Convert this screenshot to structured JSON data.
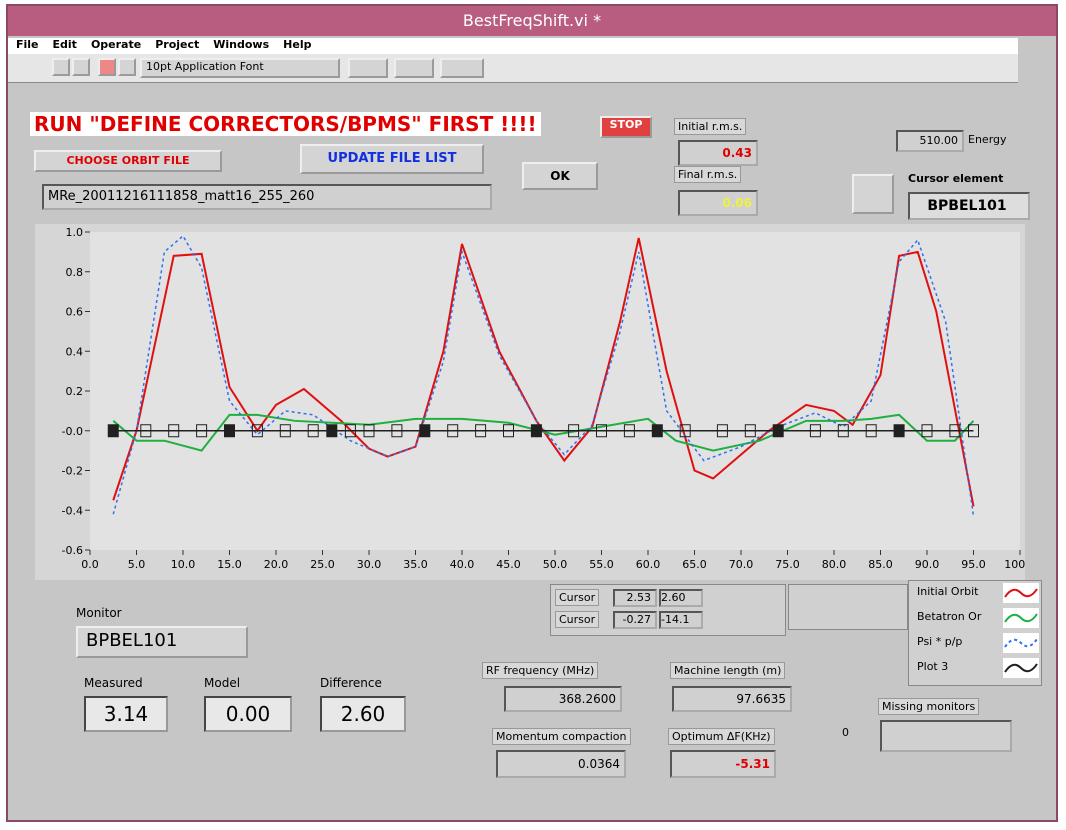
{
  "window": {
    "title": "BestFreqShift.vi *"
  },
  "menu": [
    "File",
    "Edit",
    "Operate",
    "Project",
    "Windows",
    "Help"
  ],
  "toolbar": {
    "font": "10pt Application Font"
  },
  "panel": {
    "warning": "RUN \"DEFINE CORRECTORS/BPMS\" FIRST !!!!",
    "stop": "STOP",
    "choose_file": "CHOOSE ORBIT FILE",
    "update_list": "UPDATE FILE LIST",
    "ok": "OK",
    "file": "MRe_20011216111858_matt16_255_260",
    "initial_rms": {
      "label": "Initial r.m.s.",
      "value": "0.43"
    },
    "final_rms": {
      "label": "Final r.m.s.",
      "value": "0.06"
    },
    "energy": {
      "value": "510.00",
      "label": "Energy"
    },
    "cursor_element": {
      "label": "Cursor element",
      "value": "BPBEL101"
    },
    "cursors": [
      {
        "label": "Cursor",
        "x": "2.53",
        "y": "2.60"
      },
      {
        "label": "Cursor",
        "x": "-0.27",
        "y": "-14.1"
      }
    ],
    "monitor": {
      "label": "Monitor",
      "value": "BPBEL101"
    },
    "measured": {
      "label": "Measured",
      "value": "3.14"
    },
    "model": {
      "label": "Model",
      "value": "0.00"
    },
    "difference": {
      "label": "Difference",
      "value": "2.60"
    },
    "rf_frequency": {
      "label": "RF frequency (MHz)",
      "value": "368.2600"
    },
    "machine_length": {
      "label": "Machine length (m)",
      "value": "97.6635"
    },
    "momentum_compaction": {
      "label": "Momentum compaction",
      "value": "0.0364"
    },
    "optimum_df": {
      "label": "Optimum ΔF(KHz)",
      "value": "-5.31"
    },
    "missing_monitors": {
      "label": "Missing monitors",
      "value": "0"
    }
  },
  "graph": {
    "type": "line",
    "xlim": [
      0,
      100
    ],
    "ylim": [
      -0.6,
      1.0
    ],
    "xticks": [
      {
        "value": 0,
        "label": "0.0"
      },
      {
        "value": 5,
        "label": "5.0"
      },
      {
        "value": 10,
        "label": "10.0"
      },
      {
        "value": 15,
        "label": "15.0"
      },
      {
        "value": 20,
        "label": "20.0"
      },
      {
        "value": 25,
        "label": "25.0"
      },
      {
        "value": 30,
        "label": "30.0"
      },
      {
        "value": 35,
        "label": "35.0"
      },
      {
        "value": 40,
        "label": "40.0"
      },
      {
        "value": 45,
        "label": "45.0"
      },
      {
        "value": 50,
        "label": "50.0"
      },
      {
        "value": 55,
        "label": "55.0"
      },
      {
        "value": 60,
        "label": "60.0"
      },
      {
        "value": 65,
        "label": "65.0"
      },
      {
        "value": 70,
        "label": "70.0"
      },
      {
        "value": 75,
        "label": "75.0"
      },
      {
        "value": 80,
        "label": "80.0"
      },
      {
        "value": 85,
        "label": "85.0"
      },
      {
        "value": 90,
        "label": "90.0"
      },
      {
        "value": 95,
        "label": "95.0"
      },
      {
        "value": 100,
        "label": "100.0"
      }
    ],
    "yticks": [
      {
        "value": 1.0,
        "label": "1.0"
      },
      {
        "value": 0.8,
        "label": "0.8"
      },
      {
        "value": 0.6,
        "label": "0.6"
      },
      {
        "value": 0.4,
        "label": "0.4"
      },
      {
        "value": 0.2,
        "label": "0.2"
      },
      {
        "value": 0,
        "label": "-0.0"
      },
      {
        "value": -0.2,
        "label": "-0.2"
      },
      {
        "value": -0.4,
        "label": "-0.4"
      },
      {
        "value": -0.6,
        "label": "-0.6"
      }
    ],
    "series": [
      {
        "name": "Initial Orbit",
        "color": "#e01010",
        "style": "solid",
        "x": [
          2.5,
          5,
          9,
          12,
          15,
          18,
          20,
          23,
          27,
          30,
          32,
          35,
          38,
          40,
          44,
          48,
          51,
          54,
          57,
          59,
          62,
          65,
          67,
          70,
          73,
          77,
          80,
          82,
          85,
          87,
          89,
          91,
          95
        ],
        "values": [
          -0.35,
          0,
          0.88,
          0.89,
          0.22,
          0,
          0.13,
          0.21,
          0.05,
          -0.09,
          -0.13,
          -0.08,
          0.4,
          0.94,
          0.4,
          0.05,
          -0.15,
          0.02,
          0.55,
          0.97,
          0.3,
          -0.2,
          -0.24,
          -0.12,
          0,
          0.13,
          0.1,
          0.03,
          0.28,
          0.88,
          0.9,
          0.6,
          -0.38
        ]
      },
      {
        "name": "Betatron Or",
        "color": "#20b040",
        "style": "solid",
        "x": [
          2.5,
          5,
          8,
          12,
          15,
          18,
          22,
          26,
          30,
          35,
          40,
          45,
          50,
          55,
          60,
          63,
          67,
          72,
          77,
          81,
          84,
          87,
          90,
          93,
          95
        ],
        "values": [
          0.05,
          -0.05,
          -0.05,
          -0.1,
          0.08,
          0.08,
          0.05,
          0.04,
          0.03,
          0.06,
          0.06,
          0.04,
          -0.02,
          0.02,
          0.06,
          -0.05,
          -0.1,
          -0.05,
          0.05,
          0.05,
          0.06,
          0.08,
          -0.05,
          -0.05,
          0.05
        ]
      },
      {
        "name": "Psi * p/p",
        "color": "#3070f0",
        "style": "dotted",
        "x": [
          2.5,
          5,
          8,
          10,
          12,
          15,
          18,
          21,
          24,
          28,
          32,
          35,
          38,
          40,
          44,
          48,
          51,
          54,
          57,
          59,
          62,
          66,
          70,
          74,
          78,
          81,
          84,
          87,
          89,
          92,
          95
        ],
        "values": [
          -0.42,
          0,
          0.9,
          0.98,
          0.82,
          0.15,
          -0.02,
          0.1,
          0.08,
          -0.05,
          -0.13,
          -0.08,
          0.35,
          0.9,
          0.38,
          0.05,
          -0.12,
          0.03,
          0.5,
          0.9,
          0.1,
          -0.15,
          -0.08,
          0.02,
          0.09,
          0.02,
          0.15,
          0.85,
          0.96,
          0.55,
          -0.43
        ]
      },
      {
        "name": "Plot 3",
        "color": "#202020",
        "style": "markers",
        "x": [
          2.5,
          6,
          9,
          12,
          15,
          18,
          21,
          24,
          26,
          28,
          30,
          33,
          36,
          39,
          42,
          45,
          48,
          52,
          55,
          58,
          61,
          64,
          68,
          71,
          74,
          78,
          81,
          84,
          87,
          90,
          93,
          95
        ],
        "values": [
          0,
          0,
          0,
          0,
          0,
          0,
          0,
          0,
          0,
          0,
          0,
          0,
          0,
          0,
          0,
          0,
          0,
          0,
          0,
          0,
          0,
          0,
          0,
          0,
          0,
          0,
          0,
          0,
          0,
          0,
          0,
          0
        ]
      }
    ]
  }
}
